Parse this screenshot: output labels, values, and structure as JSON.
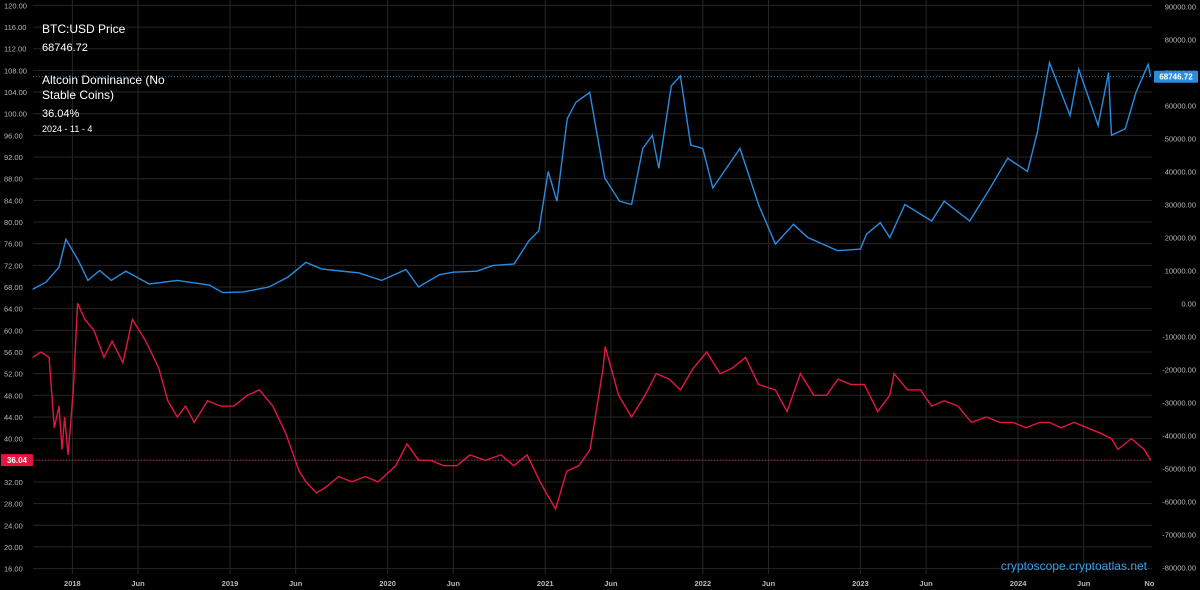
{
  "legend": {
    "btc_name": "BTC:USD Price",
    "btc_value": "68746.72",
    "alt_name": "Altcoin Dominance (No Stable Coins)",
    "alt_value": "36.04%",
    "date": "2024 - 11 - 4"
  },
  "watermark": "cryptoscope.cryptoatlas.net",
  "colors": {
    "btc": "#2a8ce0",
    "alt": "#e3173e",
    "background": "#000000",
    "grid": "#262626",
    "axis_text": "#b8b8b8"
  },
  "chart_data": {
    "type": "line",
    "x_ticks": [
      "2018",
      "Jun",
      "2019",
      "Jun",
      "2020",
      "Jun",
      "2021",
      "Jun",
      "2022",
      "Jun",
      "2023",
      "Jun",
      "2024",
      "Jun",
      "No"
    ],
    "left_axis": {
      "ticks": [
        "120.00",
        "116.00",
        "112.00",
        "108.00",
        "104.00",
        "100.00",
        "96.00",
        "92.00",
        "88.00",
        "84.00",
        "80.00",
        "76.00",
        "72.00",
        "68.00",
        "64.00",
        "60.00",
        "56.00",
        "52.00",
        "48.00",
        "44.00",
        "40.00",
        "36.00",
        "32.00",
        "28.00",
        "24.00",
        "20.00",
        "16.00"
      ],
      "range": [
        15,
        121
      ]
    },
    "right_axis": {
      "ticks": [
        "90000.00",
        "80000.00",
        "70000.00",
        "60000.00",
        "50000.00",
        "40000.00",
        "30000.00",
        "20000.00",
        "10000.00",
        "0.00",
        "-10000.00",
        "-20000.00",
        "-30000.00",
        "-40000.00",
        "-50000.00",
        "-60000.00",
        "-70000.00",
        "-80000.00"
      ],
      "range": [
        -82000,
        92000
      ]
    },
    "last_values": {
      "btc": "68746.72",
      "alt": "36.04"
    },
    "series": [
      {
        "name": "BTC:USD Price",
        "axis": "right",
        "x": [
          "2017-10-01",
          "2017-11-01",
          "2017-12-01",
          "2017-12-17",
          "2018-01-15",
          "2018-02-06",
          "2018-03-05",
          "2018-04-01",
          "2018-05-05",
          "2018-06-28",
          "2018-09-01",
          "2018-11-14",
          "2018-12-15",
          "2019-02-01",
          "2019-04-01",
          "2019-05-15",
          "2019-06-26",
          "2019-08-01",
          "2019-09-24",
          "2019-10-26",
          "2019-12-18",
          "2020-02-13",
          "2020-03-13",
          "2020-04-30",
          "2020-06-01",
          "2020-07-26",
          "2020-09-01",
          "2020-10-21",
          "2020-11-24",
          "2020-12-17",
          "2021-01-08",
          "2021-01-28",
          "2021-02-21",
          "2021-03-13",
          "2021-04-14",
          "2021-05-19",
          "2021-06-22",
          "2021-07-20",
          "2021-08-15",
          "2021-09-06",
          "2021-09-21",
          "2021-10-20",
          "2021-11-10",
          "2021-12-04",
          "2022-01-01",
          "2022-01-24",
          "2022-03-28",
          "2022-05-10",
          "2022-06-18",
          "2022-07-30",
          "2022-09-01",
          "2022-11-09",
          "2023-01-01",
          "2023-01-15",
          "2023-02-16",
          "2023-03-10",
          "2023-04-14",
          "2023-06-15",
          "2023-07-14",
          "2023-09-11",
          "2023-10-24",
          "2023-12-08",
          "2024-01-23",
          "2024-02-15",
          "2024-03-14",
          "2024-05-01",
          "2024-05-21",
          "2024-07-05",
          "2024-07-29",
          "2024-08-05",
          "2024-09-06",
          "2024-10-01",
          "2024-10-29",
          "2024-11-04"
        ],
        "values": [
          4300,
          6500,
          11000,
          19500,
          13000,
          7000,
          10000,
          7000,
          9800,
          5900,
          7000,
          5600,
          3300,
          3500,
          5000,
          8000,
          12500,
          10500,
          9700,
          9300,
          7000,
          10300,
          5000,
          8700,
          9500,
          9800,
          11500,
          12000,
          19000,
          22000,
          40000,
          31000,
          56000,
          61000,
          64000,
          38000,
          31000,
          30000,
          47000,
          51000,
          41000,
          66000,
          69000,
          48000,
          47000,
          35000,
          47000,
          30000,
          18000,
          24000,
          20000,
          16000,
          16500,
          21000,
          24500,
          20000,
          30000,
          25000,
          31000,
          25000,
          34000,
          44000,
          40000,
          52000,
          73000,
          57000,
          71000,
          54000,
          70000,
          51000,
          53000,
          64000,
          72500,
          68746.72
        ]
      },
      {
        "name": "Altcoin Dominance (No Stable Coins)",
        "axis": "left",
        "x": [
          "2017-10-01",
          "2017-10-20",
          "2017-11-08",
          "2017-11-20",
          "2017-12-01",
          "2017-12-08",
          "2017-12-14",
          "2017-12-22",
          "2018-01-03",
          "2018-01-13",
          "2018-01-30",
          "2018-02-20",
          "2018-03-15",
          "2018-04-03",
          "2018-04-28",
          "2018-05-20",
          "2018-06-20",
          "2018-07-20",
          "2018-08-10",
          "2018-09-01",
          "2018-09-20",
          "2018-10-10",
          "2018-11-10",
          "2018-12-10",
          "2019-01-10",
          "2019-02-10",
          "2019-03-10",
          "2019-04-10",
          "2019-05-10",
          "2019-06-10",
          "2019-06-26",
          "2019-07-20",
          "2019-08-10",
          "2019-09-10",
          "2019-10-10",
          "2019-11-10",
          "2019-12-10",
          "2020-01-20",
          "2020-02-15",
          "2020-03-13",
          "2020-04-10",
          "2020-05-10",
          "2020-06-10",
          "2020-07-10",
          "2020-08-15",
          "2020-09-20",
          "2020-10-20",
          "2020-11-20",
          "2020-12-20",
          "2021-01-03",
          "2021-01-25",
          "2021-02-20",
          "2021-03-20",
          "2021-04-15",
          "2021-05-15",
          "2021-05-20",
          "2021-06-20",
          "2021-07-20",
          "2021-08-20",
          "2021-09-15",
          "2021-10-15",
          "2021-11-10",
          "2021-12-10",
          "2022-01-10",
          "2022-02-10",
          "2022-03-10",
          "2022-04-10",
          "2022-05-10",
          "2022-06-18",
          "2022-07-15",
          "2022-08-15",
          "2022-09-15",
          "2022-10-15",
          "2022-11-10",
          "2022-12-10",
          "2023-01-10",
          "2023-02-10",
          "2023-03-10",
          "2023-03-20",
          "2023-04-20",
          "2023-05-20",
          "2023-06-15",
          "2023-07-14",
          "2023-08-15",
          "2023-09-15",
          "2023-10-20",
          "2023-11-20",
          "2023-12-20",
          "2024-01-20",
          "2024-02-20",
          "2024-03-14",
          "2024-04-10",
          "2024-05-10",
          "2024-06-10",
          "2024-07-10",
          "2024-08-05",
          "2024-08-20",
          "2024-09-20",
          "2024-10-20",
          "2024-11-04"
        ],
        "values": [
          55,
          56,
          55,
          42,
          46,
          38,
          44,
          37,
          49,
          65,
          62,
          60,
          55,
          58,
          54,
          62,
          58,
          53,
          47,
          44,
          46,
          43,
          47,
          46,
          46,
          48,
          49,
          46,
          41,
          34,
          32,
          30,
          31,
          33,
          32,
          33,
          32,
          35,
          39,
          36,
          36,
          35,
          35,
          37,
          36,
          37,
          35,
          37,
          32,
          30,
          27,
          34,
          35,
          38,
          53,
          57,
          48,
          44,
          48,
          52,
          51,
          49,
          53,
          56,
          52,
          53,
          55,
          50,
          49,
          45,
          52,
          48,
          48,
          51,
          50,
          50,
          45,
          48,
          52,
          49,
          49,
          46,
          47,
          46,
          43,
          44,
          43,
          43,
          42,
          43,
          43,
          42,
          43,
          42,
          41,
          40,
          38,
          40,
          38,
          36.04
        ]
      }
    ]
  }
}
